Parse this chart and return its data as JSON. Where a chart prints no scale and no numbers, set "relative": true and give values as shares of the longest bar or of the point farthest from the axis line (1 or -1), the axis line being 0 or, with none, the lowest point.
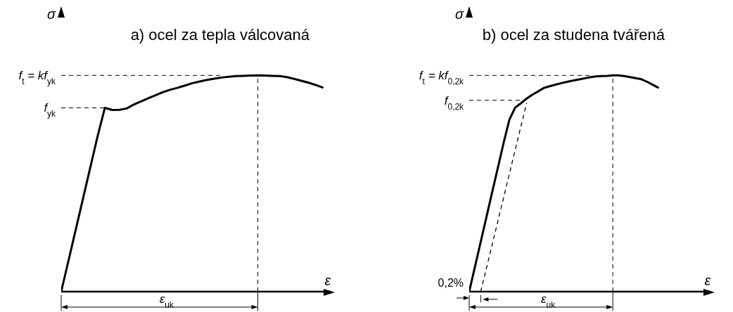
{
  "chart_data": [
    {
      "type": "line",
      "title": "a) ocel za tepla válcovaná",
      "xlabel": "ε",
      "ylabel": "σ",
      "relative": true,
      "categories": [
        null,
        null,
        null,
        null,
        null,
        null,
        null,
        null,
        null,
        null,
        null,
        null,
        null,
        null,
        null,
        null,
        null,
        null,
        null,
        null,
        null,
        null,
        null,
        null,
        null,
        null,
        null,
        null,
        null,
        null,
        null,
        null,
        null,
        null,
        null,
        null,
        null,
        null
      ],
      "series": [
        {
          "color": "#000000",
          "values": [
            0,
            0.143,
            0.287,
            0.431,
            0.575,
            0.719,
            0.85,
            0.84,
            0.841,
            0.847,
            0.866,
            0.88,
            0.895,
            0.909,
            0.923,
            0.934,
            0.943,
            0.953,
            0.964,
            0.972,
            0.979,
            0.985,
            0.99,
            0.994,
            0.997,
            0.998,
            0.999,
            1.0,
            0.999,
            0.998,
            0.997,
            0.992,
            0.984,
            0.975,
            0.966,
            0.955,
            0.943,
            null
          ]
        }
      ],
      "ref_lines": [
        {
          "axis": "y",
          "value": 1.0,
          "label": "f$_{t}$ = kf$_{yk}$",
          "line_style": "dashed"
        },
        {
          "axis": "y",
          "value": 0.85,
          "label": "f$_{yk}$",
          "line_style": "dashed"
        }
      ],
      "annotations": [
        "ε$_{uk}$"
      ]
    },
    {
      "type": "line",
      "title": "b) ocel za studena tvářená",
      "xlabel": "ε",
      "ylabel": "σ",
      "relative": true,
      "categories": [
        null,
        null,
        null,
        null,
        null,
        null,
        null,
        null,
        null,
        null,
        null,
        null,
        null,
        null,
        null,
        null,
        null,
        null,
        null,
        null,
        null,
        null,
        null,
        null,
        null,
        null,
        null,
        null,
        null,
        null,
        null,
        null,
        null,
        null,
        null,
        null,
        null,
        null,
        null,
        null,
        null,
        null,
        null
      ],
      "series": [
        {
          "color": "#000000",
          "values": [
            0,
            0.115,
            0.23,
            0.345,
            0.46,
            0.574,
            0.689,
            0.796,
            0.851,
            0.871,
            0.893,
            0.911,
            0.926,
            0.942,
            0.95,
            0.957,
            0.964,
            0.97,
            0.976,
            0.981,
            0.986,
            0.991,
            0.995,
            0.997,
            0.998,
            1.0,
            1.0,
            0.997,
            0.992,
            0.987,
            0.982,
            0.97,
            0.956,
            0.942,
            null,
            null,
            null,
            null,
            null,
            null,
            null,
            null,
            null
          ]
        },
        {
          "color": "#000000",
          "line_style": "dashed",
          "values": [
            null,
            null,
            0,
            0.109,
            0.218,
            0.327,
            0.436,
            0.546,
            0.655,
            0.764,
            0.873,
            null,
            null,
            null,
            null,
            null,
            null,
            null,
            null,
            null,
            null,
            null,
            null,
            null,
            null,
            null,
            null,
            null,
            null,
            null,
            null,
            null,
            null,
            null,
            null,
            null,
            null,
            null,
            null,
            null,
            null,
            null,
            null
          ]
        }
      ],
      "ref_lines": [
        {
          "axis": "y",
          "value": 1.0,
          "label": "f$_{t}$ = kf$_{0,2k}$",
          "line_style": "dashed"
        },
        {
          "axis": "y",
          "value": 0.885,
          "label": "f$_{0,2k}$",
          "line_style": "dashed"
        }
      ],
      "annotations": [
        "ε$_{uk}$",
        "0,2%"
      ]
    }
  ]
}
